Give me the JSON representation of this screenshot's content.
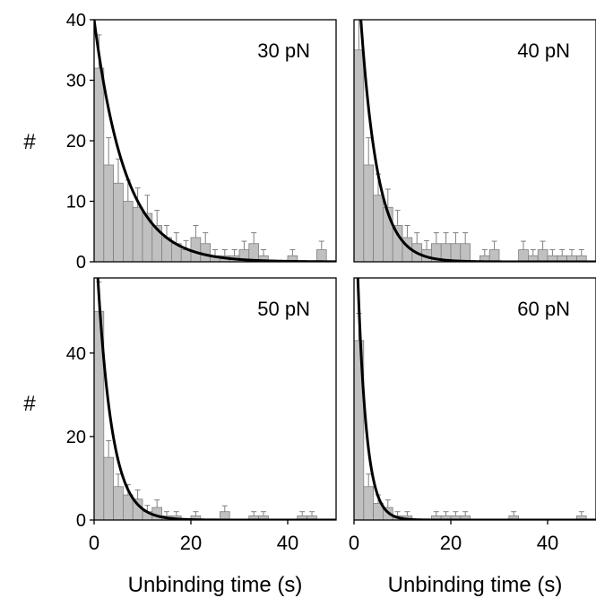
{
  "figure": {
    "xlabel": "Unbinding time (s)",
    "ylabel": "#"
  },
  "colors": {
    "bar_fill": "#c0c0c0",
    "bar_stroke": "#808080",
    "error_bar": "#808080",
    "fit_curve": "#000000",
    "frame": "#000000"
  },
  "chart_data": [
    {
      "type": "bar",
      "panel": "top-left",
      "label": "30 pN",
      "xlim": [
        0,
        50
      ],
      "ylim": [
        0,
        40
      ],
      "xticks": [],
      "yticks": [
        0,
        10,
        20,
        30,
        40
      ],
      "bin_width": 2,
      "bins": [
        {
          "x": 2,
          "y": 32,
          "err": 5.5
        },
        {
          "x": 4,
          "y": 16,
          "err": 4.5
        },
        {
          "x": 6,
          "y": 13,
          "err": 4
        },
        {
          "x": 8,
          "y": 10,
          "err": 3.5
        },
        {
          "x": 10,
          "y": 9,
          "err": 3.2
        },
        {
          "x": 12,
          "y": 8,
          "err": 3
        },
        {
          "x": 14,
          "y": 6,
          "err": 2.5
        },
        {
          "x": 16,
          "y": 4,
          "err": 2
        },
        {
          "x": 18,
          "y": 3,
          "err": 1.8
        },
        {
          "x": 20,
          "y": 2,
          "err": 1.5
        },
        {
          "x": 22,
          "y": 4,
          "err": 2
        },
        {
          "x": 24,
          "y": 3,
          "err": 1.8
        },
        {
          "x": 26,
          "y": 1,
          "err": 1
        },
        {
          "x": 28,
          "y": 1,
          "err": 1
        },
        {
          "x": 30,
          "y": 1,
          "err": 1
        },
        {
          "x": 32,
          "y": 2,
          "err": 1.4
        },
        {
          "x": 34,
          "y": 3,
          "err": 1.8
        },
        {
          "x": 36,
          "y": 1,
          "err": 1
        },
        {
          "x": 42,
          "y": 1,
          "err": 1
        },
        {
          "x": 48,
          "y": 2,
          "err": 1.4
        }
      ],
      "fit": {
        "model": "exponential",
        "amplitude": 40,
        "tau": 6.5
      }
    },
    {
      "type": "bar",
      "panel": "top-right",
      "label": "40 pN",
      "xlim": [
        0,
        50
      ],
      "ylim": [
        0,
        40
      ],
      "xticks": [],
      "yticks": [],
      "bin_width": 2,
      "bins": [
        {
          "x": 2,
          "y": 35,
          "err": 5.5
        },
        {
          "x": 4,
          "y": 16,
          "err": 4.5
        },
        {
          "x": 6,
          "y": 11,
          "err": 3.5
        },
        {
          "x": 8,
          "y": 9,
          "err": 3
        },
        {
          "x": 10,
          "y": 6,
          "err": 2.5
        },
        {
          "x": 12,
          "y": 4,
          "err": 2
        },
        {
          "x": 14,
          "y": 3,
          "err": 1.8
        },
        {
          "x": 16,
          "y": 2,
          "err": 1.5
        },
        {
          "x": 18,
          "y": 3,
          "err": 1.8
        },
        {
          "x": 20,
          "y": 3,
          "err": 1.8
        },
        {
          "x": 22,
          "y": 3,
          "err": 1.8
        },
        {
          "x": 24,
          "y": 3,
          "err": 1.8
        },
        {
          "x": 28,
          "y": 1,
          "err": 1
        },
        {
          "x": 30,
          "y": 2,
          "err": 1.4
        },
        {
          "x": 36,
          "y": 2,
          "err": 1.4
        },
        {
          "x": 38,
          "y": 1,
          "err": 1
        },
        {
          "x": 40,
          "y": 2,
          "err": 1.4
        },
        {
          "x": 42,
          "y": 1,
          "err": 1
        },
        {
          "x": 44,
          "y": 1,
          "err": 1
        },
        {
          "x": 46,
          "y": 1,
          "err": 1
        },
        {
          "x": 48,
          "y": 1,
          "err": 1
        }
      ],
      "fit": {
        "model": "exponential",
        "amplitude": 60,
        "tau": 3.5
      }
    },
    {
      "type": "bar",
      "panel": "bottom-left",
      "label": "50 pN",
      "xlim": [
        0,
        50
      ],
      "ylim": [
        0,
        58
      ],
      "xticks": [
        0,
        20,
        40
      ],
      "yticks": [
        0,
        20,
        40
      ],
      "bin_width": 2,
      "bins": [
        {
          "x": 2,
          "y": 50,
          "err": 7
        },
        {
          "x": 4,
          "y": 15,
          "err": 4
        },
        {
          "x": 6,
          "y": 8,
          "err": 3
        },
        {
          "x": 8,
          "y": 6,
          "err": 2.5
        },
        {
          "x": 10,
          "y": 5,
          "err": 2.2
        },
        {
          "x": 12,
          "y": 2,
          "err": 1.5
        },
        {
          "x": 14,
          "y": 3,
          "err": 1.8
        },
        {
          "x": 16,
          "y": 1,
          "err": 1
        },
        {
          "x": 18,
          "y": 1,
          "err": 1
        },
        {
          "x": 22,
          "y": 1,
          "err": 1
        },
        {
          "x": 28,
          "y": 2,
          "err": 1.4
        },
        {
          "x": 34,
          "y": 1,
          "err": 1
        },
        {
          "x": 36,
          "y": 1,
          "err": 1
        },
        {
          "x": 44,
          "y": 1,
          "err": 1
        },
        {
          "x": 46,
          "y": 1,
          "err": 1
        }
      ],
      "fit": {
        "model": "exponential",
        "amplitude": 75,
        "tau": 3
      }
    },
    {
      "type": "bar",
      "panel": "bottom-right",
      "label": "60 pN",
      "xlim": [
        0,
        50
      ],
      "ylim": [
        0,
        58
      ],
      "xticks": [
        0,
        20,
        40
      ],
      "yticks": [],
      "bin_width": 2,
      "bins": [
        {
          "x": 2,
          "y": 43,
          "err": 6.5
        },
        {
          "x": 4,
          "y": 8,
          "err": 3
        },
        {
          "x": 6,
          "y": 4,
          "err": 2
        },
        {
          "x": 8,
          "y": 3,
          "err": 1.8
        },
        {
          "x": 10,
          "y": 1,
          "err": 1
        },
        {
          "x": 12,
          "y": 1,
          "err": 1
        },
        {
          "x": 18,
          "y": 1,
          "err": 1
        },
        {
          "x": 20,
          "y": 1,
          "err": 1
        },
        {
          "x": 22,
          "y": 1,
          "err": 1
        },
        {
          "x": 24,
          "y": 1,
          "err": 1
        },
        {
          "x": 34,
          "y": 1,
          "err": 1
        },
        {
          "x": 48,
          "y": 1,
          "err": 1
        }
      ],
      "fit": {
        "model": "exponential",
        "amplitude": 90,
        "tau": 1.8
      }
    }
  ]
}
